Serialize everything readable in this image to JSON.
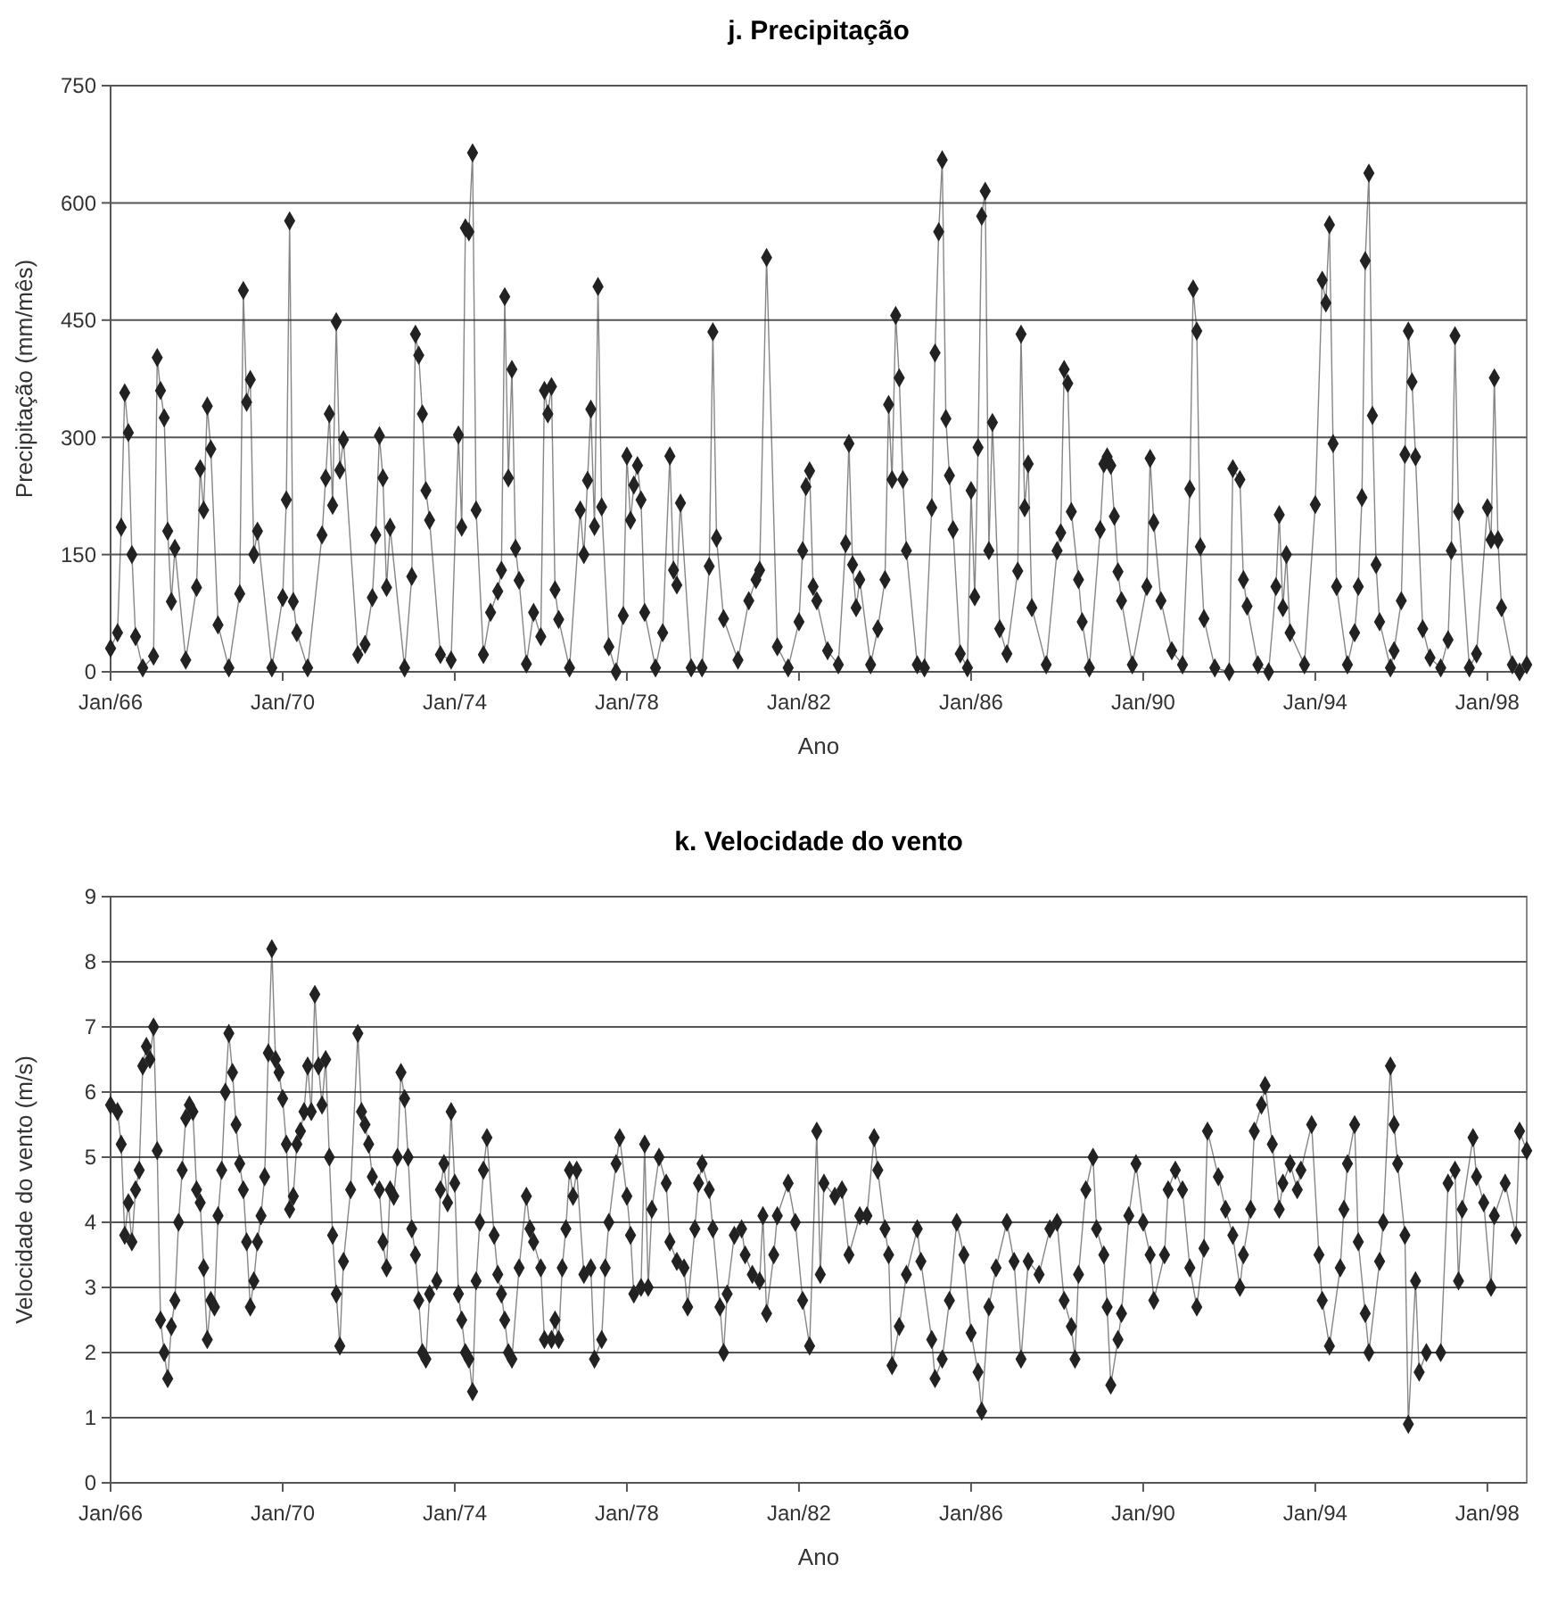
{
  "chart_data": [
    {
      "type": "line",
      "title": "j. Precipitação",
      "xlabel": "Ano",
      "ylabel": "Precipitação (mm/mês)",
      "marker": "diamond",
      "grid": "y",
      "xlim": [
        "1966-01",
        "1998-12"
      ],
      "xticks": [
        {
          "value": "1966-01",
          "label": "Jan/66"
        },
        {
          "value": "1970-01",
          "label": "Jan/70"
        },
        {
          "value": "1974-01",
          "label": "Jan/74"
        },
        {
          "value": "1978-01",
          "label": "Jan/78"
        },
        {
          "value": "1982-01",
          "label": "Jan/82"
        },
        {
          "value": "1986-01",
          "label": "Jan/86"
        },
        {
          "value": "1990-01",
          "label": "Jan/90"
        },
        {
          "value": "1994-01",
          "label": "Jan/94"
        },
        {
          "value": "1998-01",
          "label": "Jan/98"
        }
      ],
      "ylim": [
        0,
        750
      ],
      "yticks": [
        0,
        150,
        300,
        450,
        600,
        750
      ],
      "x": [
        "1966-01",
        "1966-03",
        "1966-04",
        "1966-05",
        "1966-06",
        "1966-07",
        "1966-08",
        "1966-10",
        "1967-01",
        "1967-02",
        "1967-03",
        "1967-04",
        "1967-05",
        "1967-06",
        "1967-07",
        "1967-10",
        "1968-01",
        "1968-02",
        "1968-03",
        "1968-04",
        "1968-05",
        "1968-07",
        "1968-10",
        "1969-01",
        "1969-02",
        "1969-03",
        "1969-04",
        "1969-05",
        "1969-06",
        "1969-10",
        "1970-01",
        "1970-02",
        "1970-03",
        "1970-04",
        "1970-05",
        "1970-08",
        "1970-12",
        "1971-01",
        "1971-02",
        "1971-03",
        "1971-04",
        "1971-05",
        "1971-06",
        "1971-10",
        "1971-12",
        "1972-02",
        "1972-03",
        "1972-04",
        "1972-05",
        "1972-06",
        "1972-07",
        "1972-11",
        "1973-01",
        "1973-02",
        "1973-03",
        "1973-04",
        "1973-05",
        "1973-06",
        "1973-09",
        "1973-12",
        "1974-02",
        "1974-03",
        "1974-04",
        "1974-05",
        "1974-06",
        "1974-07",
        "1974-09",
        "1974-11",
        "1975-01",
        "1975-02",
        "1975-03",
        "1975-04",
        "1975-05",
        "1975-06",
        "1975-07",
        "1975-09",
        "1975-11",
        "1976-01",
        "1976-02",
        "1976-03",
        "1976-04",
        "1976-05",
        "1976-06",
        "1976-09",
        "1976-12",
        "1977-01",
        "1977-02",
        "1977-03",
        "1977-04",
        "1977-05",
        "1977-06",
        "1977-08",
        "1977-10",
        "1977-12",
        "1978-01",
        "1978-02",
        "1978-03",
        "1978-04",
        "1978-05",
        "1978-06",
        "1978-09",
        "1978-11",
        "1979-01",
        "1979-02",
        "1979-03",
        "1979-04",
        "1979-07",
        "1979-10",
        "1979-12",
        "1980-01",
        "1980-02",
        "1980-04",
        "1980-08",
        "1980-11",
        "1981-01",
        "1981-02",
        "1981-04",
        "1981-07",
        "1981-10",
        "1982-01",
        "1982-02",
        "1982-03",
        "1982-04",
        "1982-05",
        "1982-06",
        "1982-09",
        "1982-12",
        "1983-02",
        "1983-03",
        "1983-04",
        "1983-05",
        "1983-06",
        "1983-09",
        "1983-11",
        "1984-01",
        "1984-02",
        "1984-03",
        "1984-04",
        "1984-05",
        "1984-06",
        "1984-07",
        "1984-10",
        "1984-12",
        "1985-02",
        "1985-03",
        "1985-04",
        "1985-05",
        "1985-06",
        "1985-07",
        "1985-08",
        "1985-10",
        "1985-12",
        "1986-01",
        "1986-02",
        "1986-03",
        "1986-04",
        "1986-05",
        "1986-06",
        "1986-07",
        "1986-09",
        "1986-11",
        "1987-02",
        "1987-03",
        "1987-04",
        "1987-05",
        "1987-06",
        "1987-10",
        "1988-01",
        "1988-02",
        "1988-03",
        "1988-04",
        "1988-05",
        "1988-07",
        "1988-08",
        "1988-10",
        "1989-01",
        "1989-02",
        "1989-03",
        "1989-04",
        "1989-05",
        "1989-06",
        "1989-07",
        "1989-10",
        "1990-02",
        "1990-03",
        "1990-04",
        "1990-06",
        "1990-09",
        "1990-12",
        "1991-02",
        "1991-03",
        "1991-04",
        "1991-05",
        "1991-06",
        "1991-09",
        "1992-01",
        "1992-02",
        "1992-04",
        "1992-05",
        "1992-06",
        "1992-09",
        "1992-12",
        "1993-02",
        "1993-03",
        "1993-04",
        "1993-05",
        "1993-06",
        "1993-10",
        "1994-01",
        "1994-03",
        "1994-04",
        "1994-05",
        "1994-06",
        "1994-07",
        "1994-10",
        "1994-12",
        "1995-01",
        "1995-02",
        "1995-03",
        "1995-04",
        "1995-05",
        "1995-06",
        "1995-07",
        "1995-10",
        "1995-11",
        "1996-01",
        "1996-02",
        "1996-03",
        "1996-04",
        "1996-05",
        "1996-07",
        "1996-09",
        "1996-12",
        "1997-02",
        "1997-03",
        "1997-04",
        "1997-05",
        "1997-08",
        "1997-10",
        "1998-01",
        "1998-02",
        "1998-03",
        "1998-04",
        "1998-05",
        "1998-08",
        "1998-10",
        "1998-12"
      ],
      "series": [
        {
          "color": "#222222",
          "values": [
            30,
            50,
            185,
            357,
            306,
            150,
            45,
            5,
            20,
            402,
            360,
            325,
            180,
            90,
            158,
            15,
            108,
            260,
            207,
            340,
            285,
            60,
            5,
            100,
            488,
            345,
            374,
            150,
            180,
            5,
            95,
            220,
            577,
            90,
            50,
            5,
            175,
            248,
            330,
            213,
            448,
            258,
            297,
            22,
            35,
            95,
            175,
            302,
            248,
            108,
            185,
            5,
            122,
            432,
            405,
            330,
            232,
            194,
            22,
            15,
            303,
            185,
            568,
            563,
            664,
            207,
            22,
            76,
            103,
            130,
            480,
            248,
            387,
            158,
            117,
            10,
            76,
            45,
            360,
            330,
            365,
            105,
            67,
            5,
            207,
            150,
            245,
            336,
            186,
            493,
            211,
            32,
            0,
            72,
            276,
            194,
            239,
            264,
            220,
            76,
            5,
            50,
            276,
            130,
            111,
            216,
            5,
            5,
            135,
            435,
            171,
            68,
            15,
            91,
            118,
            130,
            530,
            32,
            5,
            64,
            155,
            237,
            257,
            109,
            91,
            27,
            9,
            164,
            292,
            137,
            82,
            118,
            9,
            55,
            118,
            342,
            246,
            456,
            376,
            246,
            155,
            9,
            5,
            210,
            408,
            563,
            655,
            324,
            251,
            182,
            23,
            5,
            232,
            96,
            287,
            583,
            615,
            155,
            319,
            55,
            23,
            129,
            432,
            210,
            266,
            82,
            9,
            155,
            178,
            387,
            369,
            205,
            118,
            64,
            5,
            182,
            266,
            275,
            264,
            199,
            128,
            91,
            9,
            109,
            273,
            191,
            91,
            27,
            9,
            234,
            490,
            436,
            160,
            68,
            5,
            0,
            260,
            246,
            118,
            84,
            9,
            0,
            109,
            201,
            82,
            150,
            50,
            9,
            214,
            501,
            472,
            572,
            292,
            109,
            9,
            50,
            109,
            223,
            526,
            638,
            328,
            137,
            64,
            5,
            27,
            91,
            278,
            436,
            371,
            275,
            55,
            18,
            5,
            41,
            155,
            430,
            205,
            5,
            23,
            210,
            169,
            376,
            169,
            82,
            9,
            0,
            9
          ]
        }
      ]
    },
    {
      "type": "line",
      "title": "k. Velocidade do vento",
      "xlabel": "Ano",
      "ylabel": "Velocidade do vento (m/s)",
      "marker": "diamond",
      "grid": "y",
      "xlim": [
        "1966-01",
        "1998-12"
      ],
      "xticks": [
        {
          "value": "1966-01",
          "label": "Jan/66"
        },
        {
          "value": "1970-01",
          "label": "Jan/70"
        },
        {
          "value": "1974-01",
          "label": "Jan/74"
        },
        {
          "value": "1978-01",
          "label": "Jan/78"
        },
        {
          "value": "1982-01",
          "label": "Jan/82"
        },
        {
          "value": "1986-01",
          "label": "Jan/86"
        },
        {
          "value": "1990-01",
          "label": "Jan/90"
        },
        {
          "value": "1994-01",
          "label": "Jan/94"
        },
        {
          "value": "1998-01",
          "label": "Jan/98"
        }
      ],
      "ylim": [
        0,
        9
      ],
      "yticks": [
        0,
        1,
        2,
        3,
        4,
        5,
        6,
        7,
        8,
        9
      ],
      "x": [
        "1966-01",
        "1966-03",
        "1966-04",
        "1966-05",
        "1966-06",
        "1966-07",
        "1966-08",
        "1966-09",
        "1966-10",
        "1966-11",
        "1966-12",
        "1967-01",
        "1967-02",
        "1967-03",
        "1967-04",
        "1967-05",
        "1967-06",
        "1967-07",
        "1967-08",
        "1967-09",
        "1967-10",
        "1967-11",
        "1967-12",
        "1968-01",
        "1968-02",
        "1968-03",
        "1968-04",
        "1968-05",
        "1968-06",
        "1968-07",
        "1968-08",
        "1968-09",
        "1968-10",
        "1968-11",
        "1968-12",
        "1969-01",
        "1969-02",
        "1969-03",
        "1969-04",
        "1969-05",
        "1969-06",
        "1969-07",
        "1969-08",
        "1969-09",
        "1969-10",
        "1969-11",
        "1969-12",
        "1970-01",
        "1970-02",
        "1970-03",
        "1970-04",
        "1970-05",
        "1970-06",
        "1970-07",
        "1970-08",
        "1970-09",
        "1970-10",
        "1970-11",
        "1970-12",
        "1971-01",
        "1971-02",
        "1971-03",
        "1971-04",
        "1971-05",
        "1971-06",
        "1971-08",
        "1971-10",
        "1971-11",
        "1971-12",
        "1972-01",
        "1972-02",
        "1972-04",
        "1972-05",
        "1972-06",
        "1972-07",
        "1972-08",
        "1972-09",
        "1972-10",
        "1972-11",
        "1972-12",
        "1973-01",
        "1973-02",
        "1973-03",
        "1973-04",
        "1973-05",
        "1973-06",
        "1973-08",
        "1973-09",
        "1973-10",
        "1973-11",
        "1973-12",
        "1974-01",
        "1974-02",
        "1974-03",
        "1974-04",
        "1974-05",
        "1974-06",
        "1974-07",
        "1974-08",
        "1974-09",
        "1974-10",
        "1974-12",
        "1975-01",
        "1975-02",
        "1975-03",
        "1975-04",
        "1975-05",
        "1975-07",
        "1975-09",
        "1975-10",
        "1975-11",
        "1976-01",
        "1976-02",
        "1976-04",
        "1976-05",
        "1976-06",
        "1976-07",
        "1976-08",
        "1976-09",
        "1976-10",
        "1976-11",
        "1977-01",
        "1977-03",
        "1977-04",
        "1977-06",
        "1977-07",
        "1977-08",
        "1977-10",
        "1977-11",
        "1978-01",
        "1978-02",
        "1978-03",
        "1978-05",
        "1978-06",
        "1978-07",
        "1978-08",
        "1978-10",
        "1978-12",
        "1979-01",
        "1979-03",
        "1979-05",
        "1979-06",
        "1979-08",
        "1979-09",
        "1979-10",
        "1979-12",
        "1980-01",
        "1980-03",
        "1980-04",
        "1980-05",
        "1980-07",
        "1980-09",
        "1980-10",
        "1980-12",
        "1981-02",
        "1981-03",
        "1981-04",
        "1981-06",
        "1981-07",
        "1981-10",
        "1981-12",
        "1982-02",
        "1982-04",
        "1982-06",
        "1982-07",
        "1982-08",
        "1982-11",
        "1983-01",
        "1983-03",
        "1983-06",
        "1983-08",
        "1983-10",
        "1983-11",
        "1984-01",
        "1984-02",
        "1984-03",
        "1984-05",
        "1984-07",
        "1984-10",
        "1984-11",
        "1985-02",
        "1985-03",
        "1985-05",
        "1985-07",
        "1985-09",
        "1985-11",
        "1986-01",
        "1986-03",
        "1986-04",
        "1986-06",
        "1986-08",
        "1986-11",
        "1987-01",
        "1987-03",
        "1987-05",
        "1987-08",
        "1987-11",
        "1988-01",
        "1988-03",
        "1988-05",
        "1988-06",
        "1988-07",
        "1988-09",
        "1988-11",
        "1988-12",
        "1989-02",
        "1989-03",
        "1989-04",
        "1989-06",
        "1989-07",
        "1989-09",
        "1989-11",
        "1990-01",
        "1990-03",
        "1990-04",
        "1990-07",
        "1990-08",
        "1990-10",
        "1990-12",
        "1991-02",
        "1991-04",
        "1991-06",
        "1991-07",
        "1991-10",
        "1991-12",
        "1992-02",
        "1992-04",
        "1992-05",
        "1992-07",
        "1992-08",
        "1992-10",
        "1992-11",
        "1993-01",
        "1993-03",
        "1993-04",
        "1993-06",
        "1993-08",
        "1993-09",
        "1993-12",
        "1994-02",
        "1994-03",
        "1994-05",
        "1994-08",
        "1994-09",
        "1994-10",
        "1994-12",
        "1995-01",
        "1995-03",
        "1995-04",
        "1995-07",
        "1995-08",
        "1995-10",
        "1995-11",
        "1995-12",
        "1996-02",
        "1996-03",
        "1996-05",
        "1996-06",
        "1996-08",
        "1996-12",
        "1997-02",
        "1997-04",
        "1997-05",
        "1997-06",
        "1997-09",
        "1997-10",
        "1997-12",
        "1998-02",
        "1998-03",
        "1998-06",
        "1998-09",
        "1998-10",
        "1998-12"
      ],
      "series": [
        {
          "color": "#222222",
          "values": [
            5.8,
            5.7,
            5.2,
            3.8,
            4.3,
            3.7,
            4.5,
            4.8,
            6.4,
            6.7,
            6.5,
            7.0,
            5.1,
            2.5,
            2.0,
            1.6,
            2.4,
            2.8,
            4.0,
            4.8,
            5.6,
            5.8,
            5.7,
            4.5,
            4.3,
            3.3,
            2.2,
            2.8,
            2.7,
            4.1,
            4.8,
            6.0,
            6.9,
            6.3,
            5.5,
            4.9,
            4.5,
            3.7,
            2.7,
            3.1,
            3.7,
            4.1,
            4.7,
            6.6,
            8.2,
            6.5,
            6.3,
            5.9,
            5.2,
            4.2,
            4.4,
            5.2,
            5.4,
            5.7,
            6.4,
            5.7,
            7.5,
            6.4,
            5.8,
            6.5,
            5.0,
            3.8,
            2.9,
            2.1,
            3.4,
            4.5,
            6.9,
            5.7,
            5.5,
            5.2,
            4.7,
            4.5,
            3.7,
            3.3,
            4.5,
            4.4,
            5.0,
            6.3,
            5.9,
            5.0,
            3.9,
            3.5,
            2.8,
            2.0,
            1.9,
            2.9,
            3.1,
            4.5,
            4.9,
            4.3,
            5.7,
            4.6,
            2.9,
            2.5,
            2.0,
            1.9,
            1.4,
            3.1,
            4.0,
            4.8,
            5.3,
            3.8,
            3.2,
            2.9,
            2.5,
            2.0,
            1.9,
            3.3,
            4.4,
            3.9,
            3.7,
            3.3,
            2.2,
            2.2,
            2.5,
            2.2,
            3.3,
            3.9,
            4.8,
            4.4,
            4.8,
            3.2,
            3.3,
            1.9,
            2.2,
            3.3,
            4.0,
            4.9,
            5.3,
            4.4,
            3.8,
            2.9,
            3.0,
            5.2,
            3.0,
            4.2,
            5.0,
            4.6,
            3.7,
            3.4,
            3.3,
            2.7,
            3.9,
            4.6,
            4.9,
            4.5,
            3.9,
            2.7,
            2.0,
            2.9,
            3.8,
            3.9,
            3.5,
            3.2,
            3.1,
            4.1,
            2.6,
            3.5,
            4.1,
            4.6,
            4.0,
            2.8,
            2.1,
            5.4,
            3.2,
            4.6,
            4.4,
            4.5,
            3.5,
            4.1,
            4.1,
            5.3,
            4.8,
            3.9,
            3.5,
            1.8,
            2.4,
            3.2,
            3.9,
            3.4,
            2.2,
            1.6,
            1.9,
            2.8,
            4.0,
            3.5,
            2.3,
            1.7,
            1.1,
            2.7,
            3.3,
            4.0,
            3.4,
            1.9,
            3.4,
            3.2,
            3.9,
            4.0,
            2.8,
            2.4,
            1.9,
            3.2,
            4.5,
            5.0,
            3.9,
            3.5,
            2.7,
            1.5,
            2.2,
            2.6,
            4.1,
            4.9,
            4.0,
            3.5,
            2.8,
            3.5,
            4.5,
            4.8,
            4.5,
            3.3,
            2.7,
            3.6,
            5.4,
            4.7,
            4.2,
            3.8,
            3.0,
            3.5,
            4.2,
            5.4,
            5.8,
            6.1,
            5.2,
            4.2,
            4.6,
            4.9,
            4.5,
            4.8,
            5.5,
            3.5,
            2.8,
            2.1,
            3.3,
            4.2,
            4.9,
            5.5,
            3.7,
            2.6,
            2.0,
            3.4,
            4.0,
            6.4,
            5.5,
            4.9,
            3.8,
            0.9,
            3.1,
            1.7,
            2.0,
            2.0,
            4.6,
            4.8,
            3.1,
            4.2,
            5.3,
            4.7,
            4.3,
            3.0,
            4.1,
            4.6,
            3.8,
            5.4,
            5.1
          ]
        }
      ]
    }
  ]
}
